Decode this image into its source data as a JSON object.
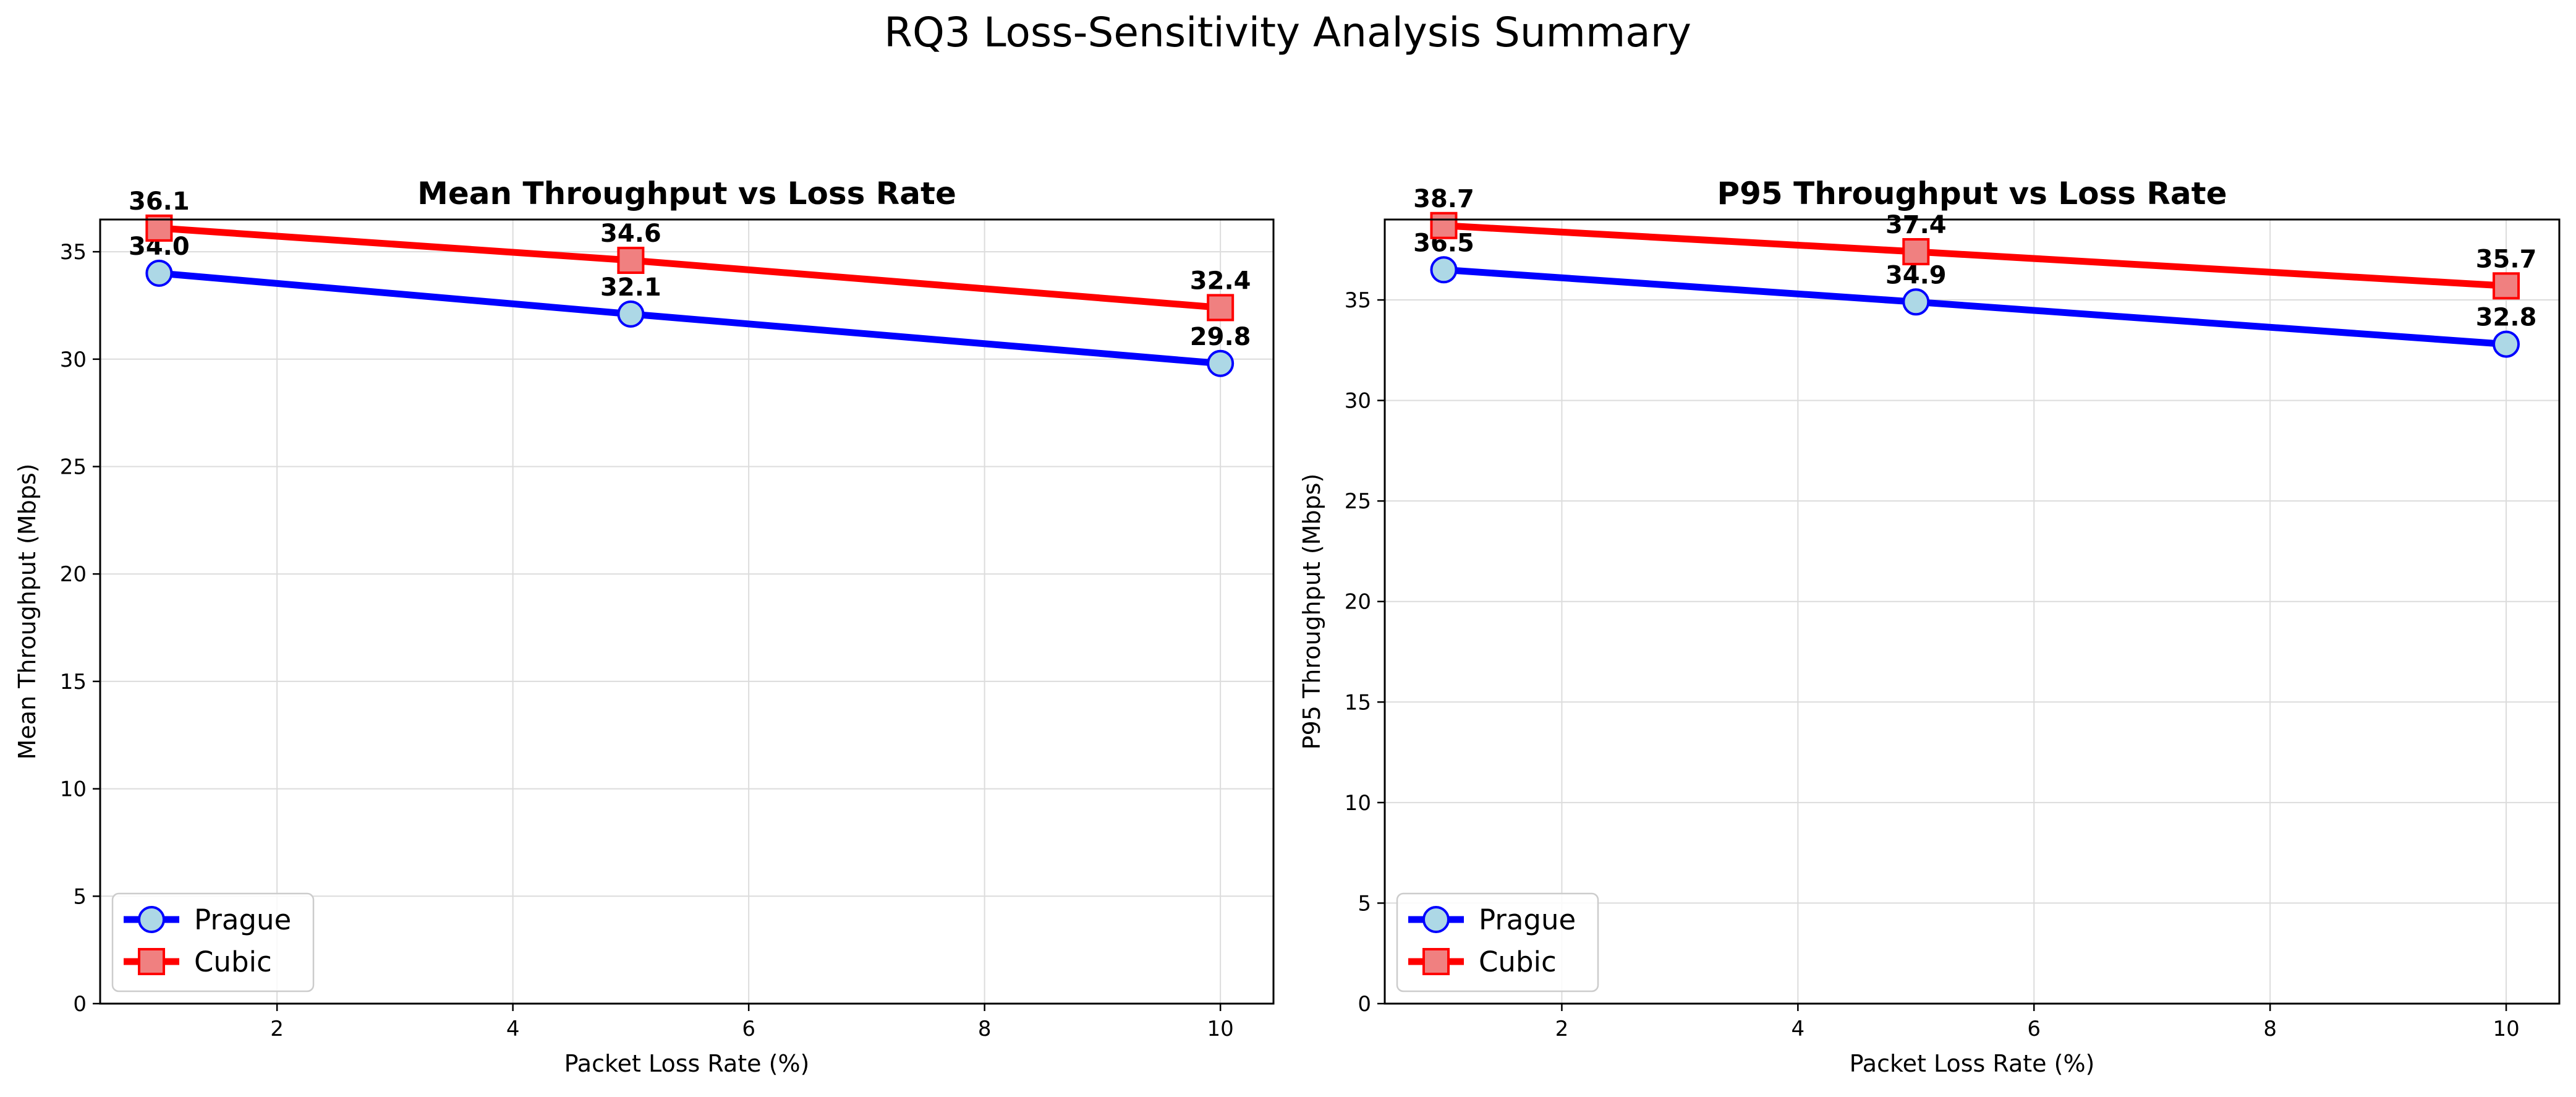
{
  "figure": {
    "title": "RQ3 Loss-Sensitivity Analysis Summary"
  },
  "chart_data": [
    {
      "type": "line",
      "title": "Mean Throughput vs Loss Rate",
      "xlabel": "Packet Loss Rate (%)",
      "ylabel": "Mean Throughput (Mbps)",
      "xlim": [
        0.5,
        10.45
      ],
      "ylim": [
        0,
        36.5
      ],
      "xticks": [
        2,
        4,
        6,
        8,
        10
      ],
      "yticks": [
        0,
        5,
        10,
        15,
        20,
        25,
        30,
        35
      ],
      "grid": true,
      "legend_position": "lower-left",
      "x": [
        1,
        5,
        10
      ],
      "series": [
        {
          "name": "Prague",
          "values": [
            34.0,
            32.1,
            29.8
          ],
          "labels": [
            "34.0",
            "32.1",
            "29.8"
          ],
          "color": "#0000ff",
          "marker": "circle",
          "marker_fill": "#add8e6",
          "marker_edge": "#0000ff"
        },
        {
          "name": "Cubic",
          "values": [
            36.1,
            34.6,
            32.4
          ],
          "labels": [
            "36.1",
            "34.6",
            "32.4"
          ],
          "color": "#ff0000",
          "marker": "square",
          "marker_fill": "#f08080",
          "marker_edge": "#ff0000"
        }
      ]
    },
    {
      "type": "line",
      "title": "P95 Throughput vs Loss Rate",
      "xlabel": "Packet Loss Rate (%)",
      "ylabel": "P95 Throughput (Mbps)",
      "xlim": [
        0.5,
        10.45
      ],
      "ylim": [
        0,
        39
      ],
      "xticks": [
        2,
        4,
        6,
        8,
        10
      ],
      "yticks": [
        0,
        5,
        10,
        15,
        20,
        25,
        30,
        35
      ],
      "grid": true,
      "legend_position": "lower-left",
      "x": [
        1,
        5,
        10
      ],
      "series": [
        {
          "name": "Prague",
          "values": [
            36.5,
            34.9,
            32.8
          ],
          "labels": [
            "36.5",
            "34.9",
            "32.8"
          ],
          "color": "#0000ff",
          "marker": "circle",
          "marker_fill": "#add8e6",
          "marker_edge": "#0000ff"
        },
        {
          "name": "Cubic",
          "values": [
            38.7,
            37.4,
            35.7
          ],
          "labels": [
            "38.7",
            "37.4",
            "35.7"
          ],
          "color": "#ff0000",
          "marker": "square",
          "marker_fill": "#f08080",
          "marker_edge": "#ff0000"
        }
      ]
    }
  ]
}
